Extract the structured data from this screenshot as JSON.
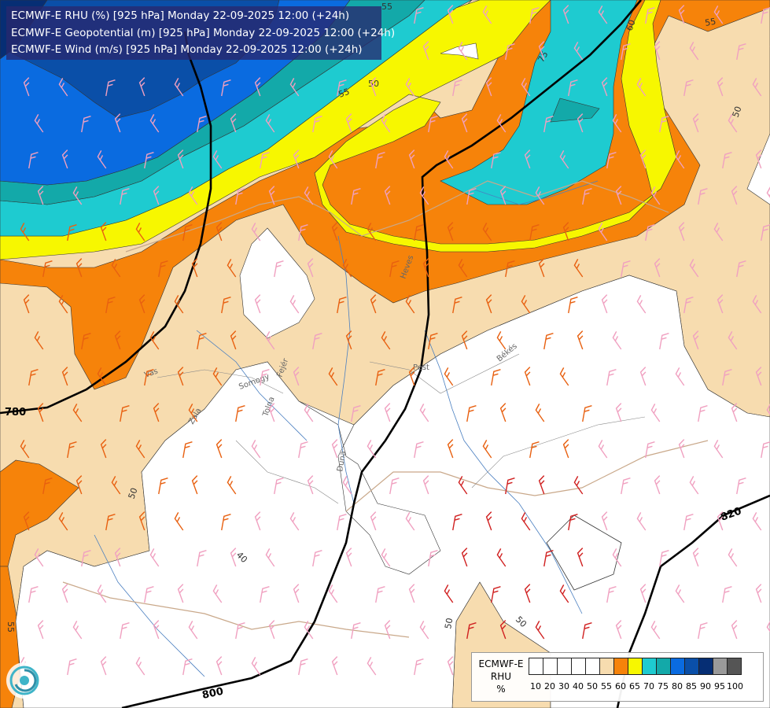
{
  "titles": [
    "ECMWF-E RHU (%) [925 hPa] Monday 22-09-2025 12:00 (+24h)",
    "ECMWF-E Geopotential (m) [925 hPa] Monday 22-09-2025 12:00 (+24h)",
    "ECMWF-E Wind (m/s) [925 hPa] Monday 22-09-2025 12:00 (+24h)"
  ],
  "legend": {
    "name_lines": [
      "ECMWF-E",
      "RHU",
      "%"
    ],
    "swatches": [
      {
        "label": "10",
        "color": "#ffffff"
      },
      {
        "label": "20",
        "color": "#ffffff"
      },
      {
        "label": "30",
        "color": "#ffffff"
      },
      {
        "label": "40",
        "color": "#ffffff"
      },
      {
        "label": "50",
        "color": "#ffffff"
      },
      {
        "label": "55",
        "color": "#f7dcaf"
      },
      {
        "label": "60",
        "color": "#f6830a"
      },
      {
        "label": "65",
        "color": "#f7f700"
      },
      {
        "label": "70",
        "color": "#1ecbd0"
      },
      {
        "label": "75",
        "color": "#13a9a9"
      },
      {
        "label": "80",
        "color": "#0a6be0"
      },
      {
        "label": "85",
        "color": "#0a4fa8"
      },
      {
        "label": "90",
        "color": "#062e74"
      },
      {
        "label": "95",
        "color": "#9a9a9a"
      },
      {
        "label": "100",
        "color": "#555555"
      }
    ]
  },
  "geopotential_labels": [
    "780",
    "800",
    "820"
  ],
  "rhu_contour_labels": [
    "55",
    "55",
    "50",
    "75",
    "60",
    "55",
    "50",
    "55",
    "50",
    "40",
    "50",
    "50",
    "55"
  ],
  "region_labels": [
    "Vas",
    "Zala",
    "Somogy",
    "Tolna",
    "Fejér",
    "Pest",
    "Heves",
    "Békés",
    "Duna"
  ],
  "colors": {
    "rhu_55": "#f7dcaf",
    "rhu_60": "#f6830a",
    "rhu_65": "#f7f700",
    "rhu_70": "#1ecbd0",
    "rhu_75": "#13a9a9",
    "rhu_80": "#0a6be0",
    "rhu_85": "#0a4fa8",
    "title_bg": "#28286e"
  }
}
